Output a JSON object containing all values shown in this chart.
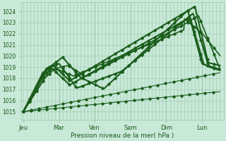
{
  "background_color": "#c8e8d8",
  "grid_color": "#98c8a8",
  "line_color": "#1a5c1a",
  "xlabel": "Pression niveau de la mer( hPa )",
  "ylim": [
    1014.3,
    1024.8
  ],
  "yticks": [
    1015,
    1016,
    1017,
    1018,
    1019,
    1020,
    1021,
    1022,
    1023,
    1024
  ],
  "day_labels": [
    "Jeu",
    "Mar",
    "Ven",
    "Sam",
    "Dim",
    "Lun"
  ],
  "day_positions": [
    0,
    20,
    40,
    60,
    80,
    100
  ],
  "xlim": [
    -1,
    112
  ],
  "total_hours": 110
}
